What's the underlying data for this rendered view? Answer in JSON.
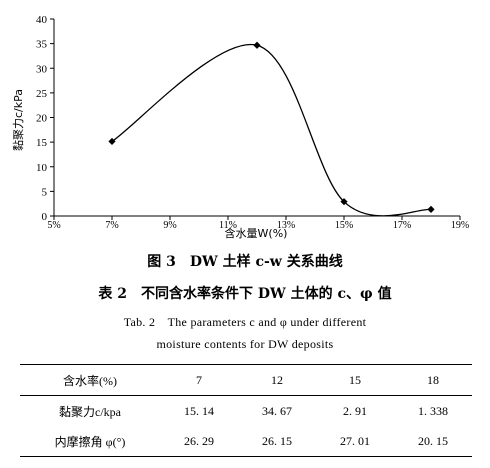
{
  "chart_data": {
    "type": "line",
    "xlabel": "含水量W(%)",
    "ylabel": "黏聚力c/kPa",
    "x_tick_labels": [
      "5%",
      "7%",
      "9%",
      "11%",
      "13%",
      "15%",
      "17%",
      "19%"
    ],
    "y_ticks": [
      0,
      5,
      10,
      15,
      20,
      25,
      30,
      35,
      40
    ],
    "xlim": [
      5,
      19
    ],
    "ylim": [
      0,
      40
    ],
    "series": [
      {
        "x": [
          7,
          12,
          15,
          18
        ],
        "values": [
          15.14,
          34.67,
          2.91,
          1.338
        ]
      }
    ],
    "marker": "diamond",
    "grid": false,
    "colors": {
      "line": "#000000"
    }
  },
  "figure_caption": "图 3　DW 土样 c-w 关系曲线",
  "table": {
    "caption_cn": "表 2　不同含水率条件下 DW 土体的 c、φ 值",
    "caption_en_line1": "Tab. 2　The parameters c and φ under different",
    "caption_en_line2": "moisture contents for DW deposits",
    "header": [
      "含水率(%)",
      "7",
      "12",
      "15",
      "18"
    ],
    "rows": [
      [
        "黏聚力c/kpa",
        "15. 14",
        "34. 67",
        "2. 91",
        "1. 338"
      ],
      [
        "内摩擦角 φ(°)",
        "26. 29",
        "26. 15",
        "27. 01",
        "20. 15"
      ]
    ]
  }
}
